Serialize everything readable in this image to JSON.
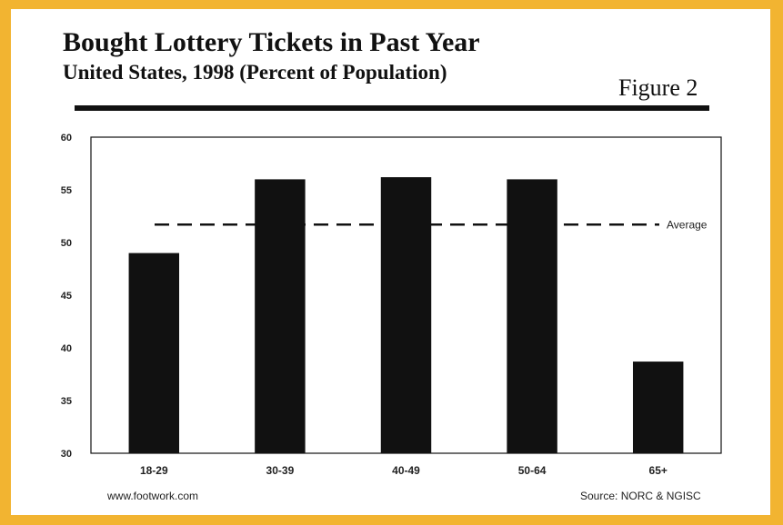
{
  "header": {
    "title": "Bought Lottery Tickets in Past Year",
    "subtitle": "United States, 1998 (Percent of Population)",
    "figure_label": "Figure 2"
  },
  "footer": {
    "left": "www.footwork.com",
    "right": "Source: NORC & NGISC"
  },
  "colors": {
    "background": "#f2b431",
    "bar": "#111111",
    "panel": "#ffffff"
  },
  "chart_data": {
    "type": "bar",
    "title": "Bought Lottery Tickets in Past Year",
    "subtitle": "United States, 1998 (Percent of Population)",
    "categories": [
      "18-29",
      "30-39",
      "40-49",
      "50-64",
      "65+"
    ],
    "values": [
      49.0,
      56.0,
      56.2,
      56.0,
      38.7
    ],
    "ylim": [
      30,
      60
    ],
    "yticks": [
      30,
      35,
      40,
      45,
      50,
      55,
      60
    ],
    "grid": false,
    "reference_line": {
      "label": "Average",
      "value": 51.7,
      "style": "dashed"
    }
  }
}
